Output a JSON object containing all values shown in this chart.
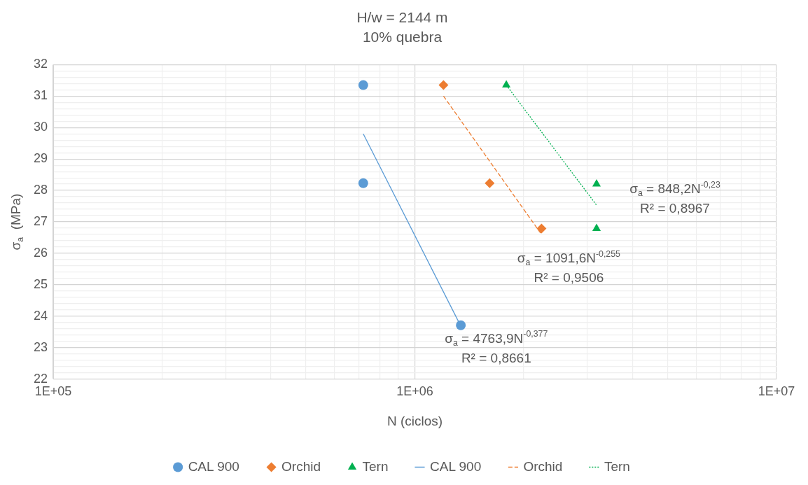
{
  "chart_data": {
    "type": "scatter",
    "title": "H/w = 2144 m",
    "subtitle": "10% quebra",
    "xlabel": "N (ciclos)",
    "ylabel": "σ$_{a}$  (MPa)",
    "log": "x",
    "grid": true,
    "legend": "bottom",
    "xlim": [
      100000,
      10000000
    ],
    "xticks": [
      {
        "value": 100000,
        "label": "1E+05"
      },
      {
        "value": 200000,
        "label": null
      },
      {
        "value": 300000,
        "label": null
      },
      {
        "value": 400000,
        "label": null
      },
      {
        "value": 500000,
        "label": null
      },
      {
        "value": 600000,
        "label": null
      },
      {
        "value": 700000,
        "label": null
      },
      {
        "value": 800000,
        "label": null
      },
      {
        "value": 900000,
        "label": null
      },
      {
        "value": 1000000,
        "label": "1E+06"
      },
      {
        "value": 2000000,
        "label": null
      },
      {
        "value": 3000000,
        "label": null
      },
      {
        "value": 4000000,
        "label": null
      },
      {
        "value": 5000000,
        "label": null
      },
      {
        "value": 6000000,
        "label": null
      },
      {
        "value": 7000000,
        "label": null
      },
      {
        "value": 8000000,
        "label": null
      },
      {
        "value": 9000000,
        "label": null
      },
      {
        "value": 10000000,
        "label": "1E+07"
      }
    ],
    "ylim": [
      22,
      32
    ],
    "yticks": [
      22,
      {
        "value": 22.2,
        "label": null
      },
      {
        "value": 22.4,
        "label": null
      },
      {
        "value": 22.6,
        "label": null
      },
      {
        "value": 22.8,
        "label": null
      },
      23,
      {
        "value": 23.2,
        "label": null
      },
      {
        "value": 23.4,
        "label": null
      },
      {
        "value": 23.6,
        "label": null
      },
      {
        "value": 23.8,
        "label": null
      },
      24,
      {
        "value": 24.2,
        "label": null
      },
      {
        "value": 24.4,
        "label": null
      },
      {
        "value": 24.6,
        "label": null
      },
      {
        "value": 24.8,
        "label": null
      },
      25,
      {
        "value": 25.2,
        "label": null
      },
      {
        "value": 25.4,
        "label": null
      },
      {
        "value": 25.6,
        "label": null
      },
      {
        "value": 25.8,
        "label": null
      },
      26,
      {
        "value": 26.2,
        "label": null
      },
      {
        "value": 26.4,
        "label": null
      },
      {
        "value": 26.6,
        "label": null
      },
      {
        "value": 26.8,
        "label": null
      },
      27,
      {
        "value": 27.2,
        "label": null
      },
      {
        "value": 27.4,
        "label": null
      },
      {
        "value": 27.6,
        "label": null
      },
      {
        "value": 27.8,
        "label": null
      },
      28,
      {
        "value": 28.2,
        "label": null
      },
      {
        "value": 28.4,
        "label": null
      },
      {
        "value": 28.6,
        "label": null
      },
      {
        "value": 28.8,
        "label": null
      },
      29,
      {
        "value": 29.2,
        "label": null
      },
      {
        "value": 29.4,
        "label": null
      },
      {
        "value": 29.6,
        "label": null
      },
      {
        "value": 29.8,
        "label": null
      },
      30,
      {
        "value": 30.2,
        "label": null
      },
      {
        "value": 30.4,
        "label": null
      },
      {
        "value": 30.6,
        "label": null
      },
      {
        "value": 30.8,
        "label": null
      },
      31,
      {
        "value": 31.2,
        "label": null
      },
      {
        "value": 31.4,
        "label": null
      },
      {
        "value": 31.6,
        "label": null
      },
      {
        "value": 31.8,
        "label": null
      },
      32
    ],
    "series": [
      {
        "name": "CAL 900",
        "type": "scatter",
        "marker": "circle",
        "color": "#5b9bd5",
        "x": [
          720000,
          720000,
          1340000
        ],
        "values": [
          31.35,
          28.23,
          23.71
        ]
      },
      {
        "name": "Orchid",
        "type": "scatter",
        "marker": "diamond",
        "color": "#ed7d31",
        "x": [
          1200000,
          1610000,
          2240000
        ],
        "values": [
          31.35,
          28.23,
          26.79
        ]
      },
      {
        "name": "Tern",
        "type": "scatter",
        "marker": "triangle",
        "color": "#00b050",
        "x": [
          1790000,
          3180000,
          3180000
        ],
        "values": [
          31.35,
          28.2,
          26.79
        ]
      },
      {
        "name": "CAL 900",
        "type": "line",
        "marker": "none",
        "line_style": "solid",
        "color": "#5b9bd5",
        "x": [
          720000,
          1320000
        ],
        "values": [
          29.8,
          23.83
        ]
      },
      {
        "name": "Orchid",
        "type": "line",
        "marker": "none",
        "line_style": "dashed",
        "color": "#ed7d31",
        "x": [
          1200000,
          2240000
        ],
        "values": [
          31.0,
          26.6
        ]
      },
      {
        "name": "Tern",
        "type": "line",
        "marker": "none",
        "line_style": "dotted",
        "color": "#00b050",
        "x": [
          1790000,
          3180000
        ],
        "values": [
          31.35,
          27.53
        ]
      }
    ],
    "annotations": [
      "σ$_{a}$ = 4763,9N$^{-0,377}$",
      "R² = 0,8661",
      "σ$_{a}$ = 1091,6N$^{-0,255}$",
      "R² = 0,9506",
      "σ$_{a}$ = 848,2N$^{-0,23}$",
      "R² = 0,8967"
    ]
  }
}
